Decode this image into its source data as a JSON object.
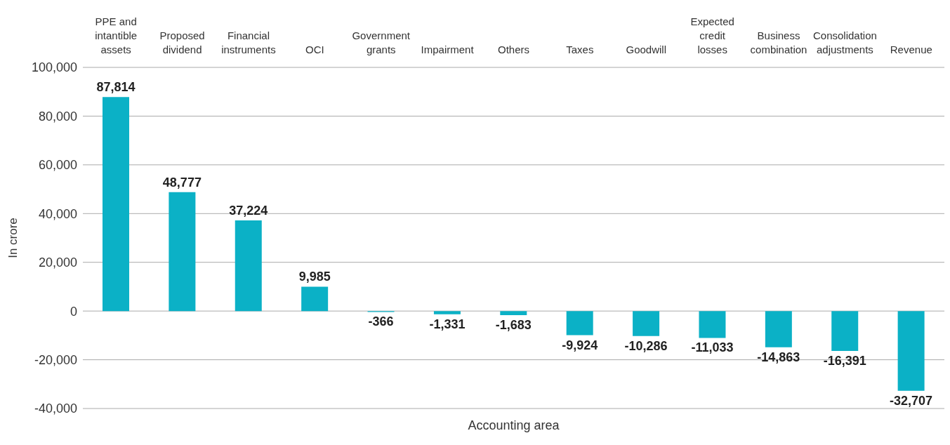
{
  "chart_data": {
    "type": "bar",
    "xlabel": "Accounting area",
    "ylabel": "In crore",
    "categories": [
      "PPE and intantible assets",
      "Proposed dividend",
      "Financial instruments",
      "OCI",
      "Government grants",
      "Impairment",
      "Others",
      "Taxes",
      "Goodwill",
      "Expected credit losses",
      "Business combination",
      "Consolidation adjustments",
      "Revenue"
    ],
    "values": [
      87814,
      48777,
      37224,
      9985,
      -366,
      -1331,
      -1683,
      -9924,
      -10286,
      -11033,
      -14863,
      -16391,
      -32707
    ],
    "value_labels": [
      "87,814",
      "48,777",
      "37,224",
      "9,985",
      "-366",
      "-1,331",
      "-1,683",
      "-9,924",
      "-10,286",
      "-11,033",
      "-14,863",
      "-16,391",
      "-32,707"
    ],
    "color": "#0bb1c6",
    "ylim": [
      -40000,
      100000
    ],
    "yticks": [
      {
        "value": -40000,
        "label": "-40,000"
      },
      {
        "value": -20000,
        "label": "-20,000"
      },
      0,
      {
        "value": 20000,
        "label": "20,000"
      },
      {
        "value": 40000,
        "label": "40,000"
      },
      {
        "value": 60000,
        "label": "60,000"
      },
      {
        "value": 80000,
        "label": "80,000"
      },
      {
        "value": 100000,
        "label": "100,000"
      }
    ],
    "grid": "y",
    "legend": false
  }
}
